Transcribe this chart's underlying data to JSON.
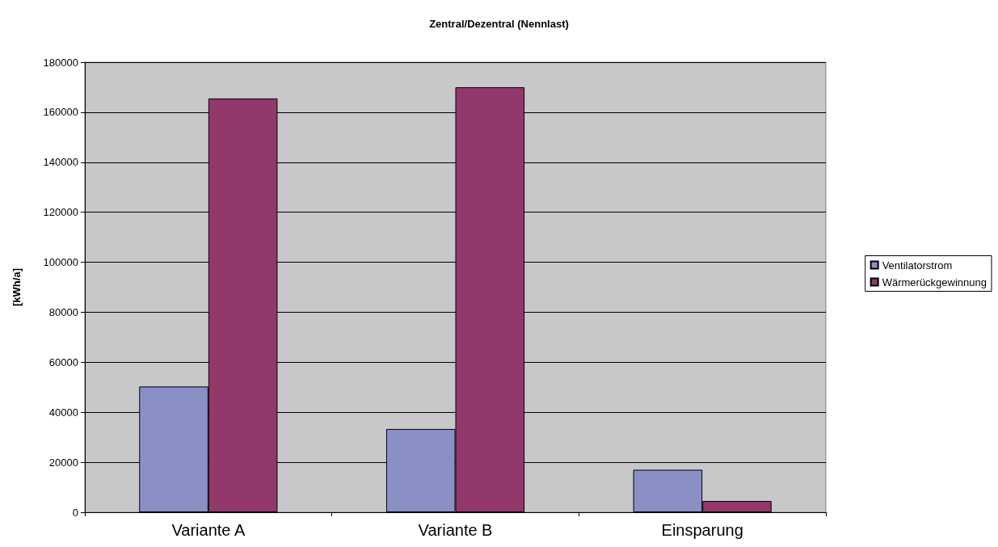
{
  "chart_data": {
    "type": "bar",
    "title": "Zentral/Dezentral (Nennlast)",
    "ylabel": "[kWh/a]",
    "categories": [
      "Variante A",
      "Variante B",
      "Einsparung"
    ],
    "series": [
      {
        "name": "Ventilatorstrom",
        "color": "#8a8fc6",
        "values": [
          50300,
          33300,
          17000
        ]
      },
      {
        "name": "Wärmerückgewinnung",
        "color": "#93386a",
        "values": [
          165500,
          170000,
          4500
        ]
      }
    ],
    "ylim": [
      0,
      180000
    ],
    "yticks": [
      0,
      20000,
      40000,
      60000,
      80000,
      100000,
      120000,
      140000,
      160000,
      180000
    ],
    "grid": "y",
    "legend": "right"
  }
}
